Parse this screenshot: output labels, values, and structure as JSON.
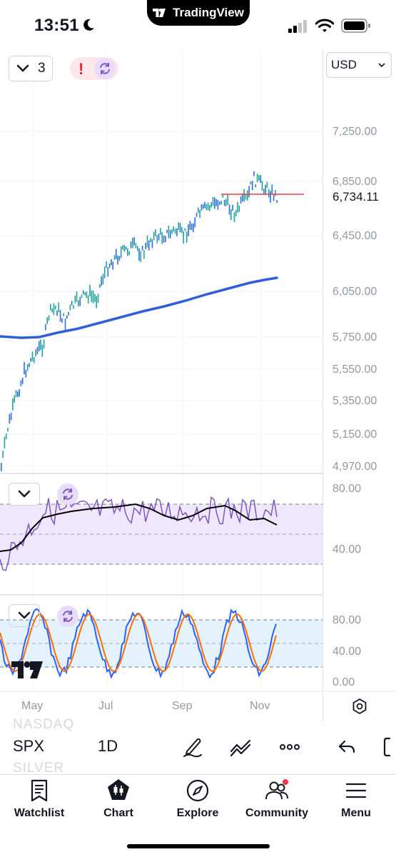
{
  "status_bar": {
    "time": "13:51",
    "dynamic_island_label": "TradingView"
  },
  "chart": {
    "interval_count": "3",
    "alert_symbol": "!",
    "currency": "USD",
    "price_axis": [
      "7,250.00",
      "6,850.00",
      "6,450.00",
      "6,050.00",
      "5,750.00",
      "5,550.00",
      "5,350.00",
      "5,150.00",
      "4,970.00"
    ],
    "last_price": "6,734.11",
    "rsi_axis": [
      "80.00",
      "40.00"
    ],
    "stoch_axis": [
      "80.00",
      "40.00",
      "0.00"
    ],
    "time_axis": [
      "May",
      "Jul",
      "Sep",
      "Nov"
    ],
    "colors": {
      "accent": "#7e57c2",
      "ma": "#2e5fd8",
      "price_line": "#f23645",
      "candle_up": "#22a39a",
      "candle_down": "#2f6fd8"
    }
  },
  "toolbar": {
    "symbol": "SPX",
    "resolution": "1D",
    "ghost_above": "NASDAQ",
    "ghost_below": "SILVER"
  },
  "tabs": [
    {
      "label": "Watchlist",
      "icon": "watchlist-icon"
    },
    {
      "label": "Chart",
      "icon": "chart-icon"
    },
    {
      "label": "Explore",
      "icon": "compass-icon"
    },
    {
      "label": "Community",
      "icon": "community-icon"
    },
    {
      "label": "Menu",
      "icon": "menu-icon"
    }
  ]
}
